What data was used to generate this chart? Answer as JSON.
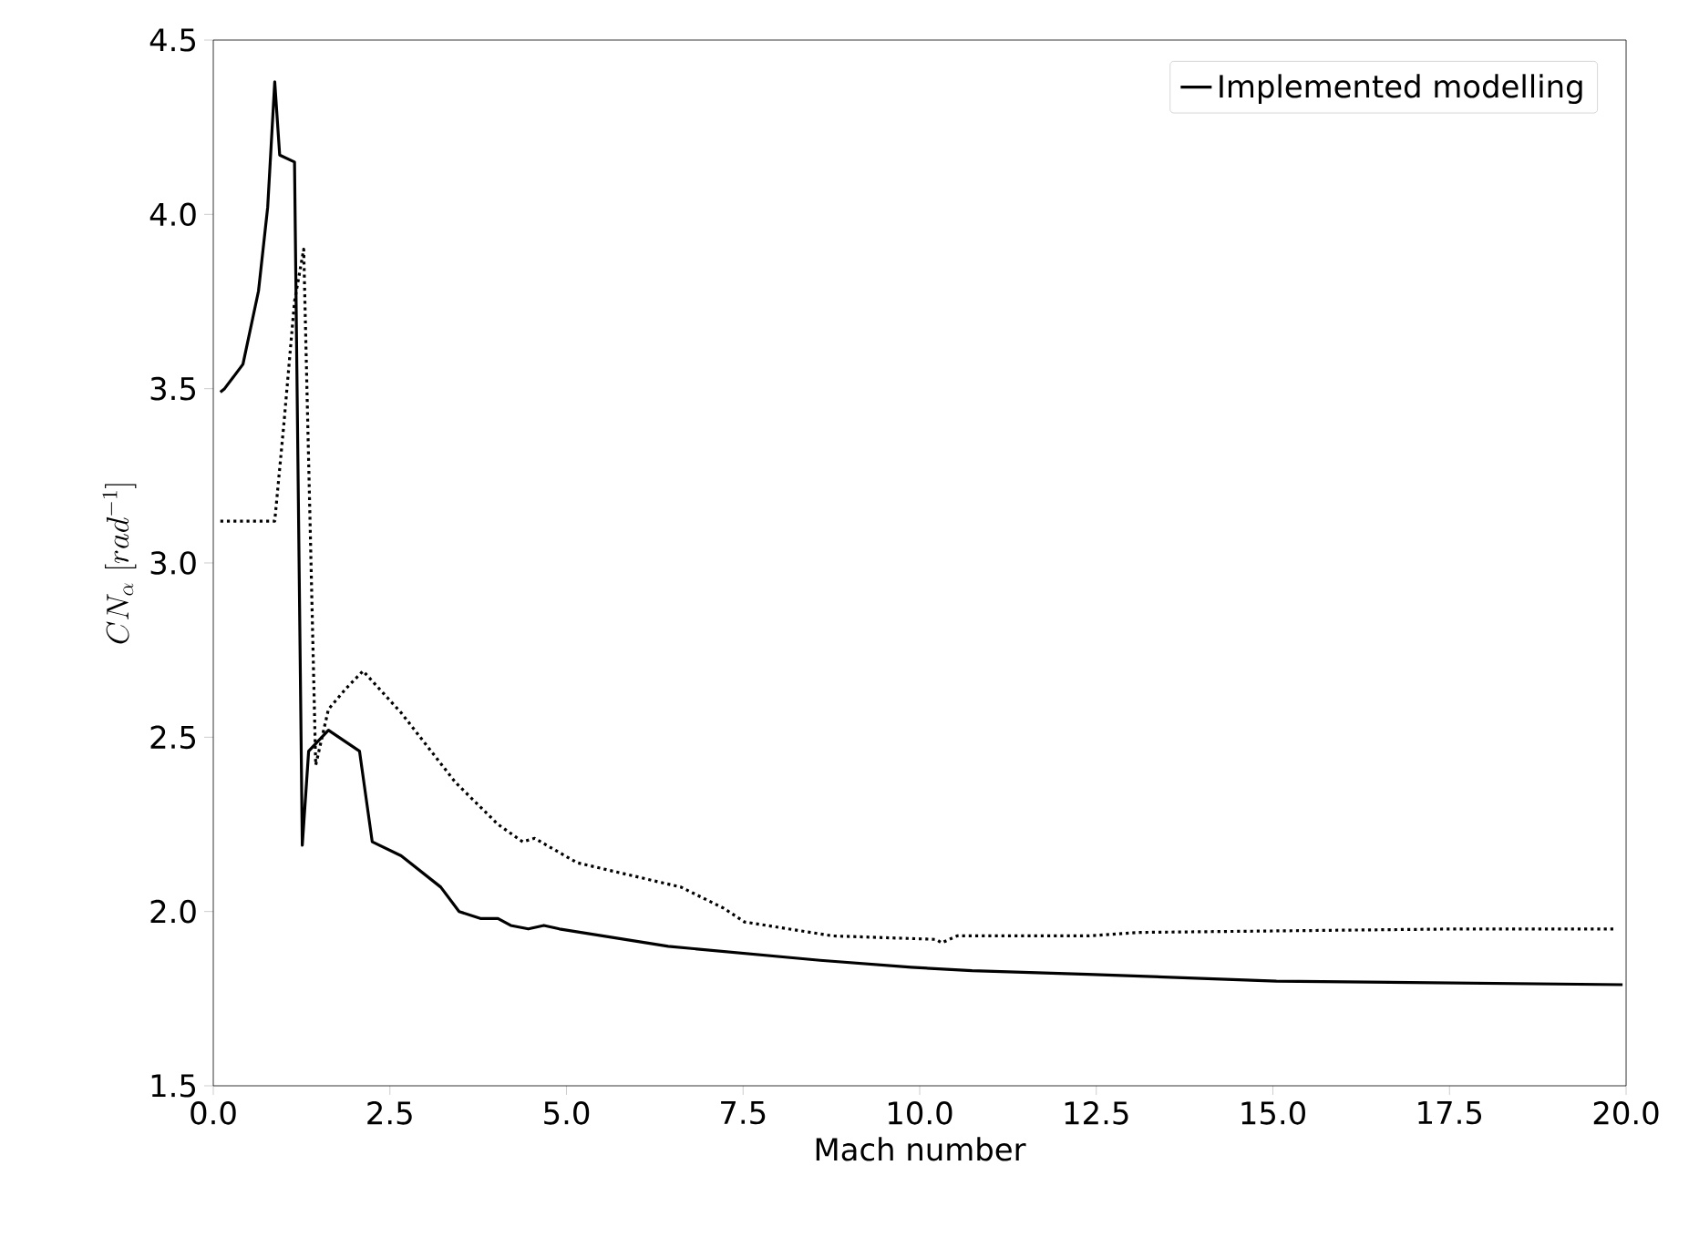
{
  "chart_data": {
    "type": "line",
    "xlabel": "Mach number",
    "ylabel": "CN_{\\alpha}\\ [rad^{-1}]",
    "xlim": [
      0,
      20
    ],
    "ylim": [
      1.5,
      4.5
    ],
    "xticks": [
      {
        "value": 0,
        "label": "0.0"
      },
      {
        "value": 2.5,
        "label": "2.5"
      },
      {
        "value": 5,
        "label": "5.0"
      },
      {
        "value": 7.5,
        "label": "7.5"
      },
      {
        "value": 10,
        "label": "10.0"
      },
      {
        "value": 12.5,
        "label": "12.5"
      },
      {
        "value": 15,
        "label": "15.0"
      },
      {
        "value": 17.5,
        "label": "17.5"
      },
      {
        "value": 20,
        "label": "20.0"
      }
    ],
    "yticks": [
      {
        "value": 1.5,
        "label": "1.5"
      },
      {
        "value": 2,
        "label": "2.0"
      },
      {
        "value": 2.5,
        "label": "2.5"
      },
      {
        "value": 3,
        "label": "3.0"
      },
      {
        "value": 3.5,
        "label": "3.5"
      },
      {
        "value": 4,
        "label": "4.0"
      },
      {
        "value": 4.5,
        "label": "4.5"
      }
    ],
    "legend": "top right",
    "grid": false,
    "series": [
      {
        "color": "#000000",
        "line_style": "dotted",
        "x": [
          0.1,
          0.87,
          1.0,
          1.15,
          1.28,
          1.45,
          1.63,
          1.88,
          2.12,
          2.66,
          3.43,
          4.03,
          4.38,
          4.55,
          5.15,
          6.62,
          7.22,
          7.52,
          8.77,
          10.23,
          10.31,
          10.53,
          12.38,
          13.1,
          17.6,
          19.86
        ],
        "values": [
          3.12,
          3.12,
          3.4,
          3.75,
          3.9,
          2.42,
          2.58,
          2.64,
          2.69,
          2.57,
          2.37,
          2.25,
          2.2,
          2.21,
          2.14,
          2.07,
          2.01,
          1.97,
          1.93,
          1.92,
          1.91,
          1.93,
          1.93,
          1.94,
          1.95,
          1.95
        ]
      },
      {
        "name": "Implemented modelling",
        "color": "#000000",
        "line_style": "solid",
        "x": [
          0.1,
          0.16,
          0.42,
          0.64,
          0.77,
          0.87,
          0.94,
          1.15,
          1.26,
          1.35,
          1.63,
          2.07,
          2.25,
          2.66,
          3.22,
          3.48,
          3.78,
          4.03,
          4.21,
          4.46,
          4.68,
          4.9,
          6.44,
          8.59,
          9.88,
          10.74,
          12.38,
          15.05,
          19.95
        ],
        "values": [
          3.49,
          3.5,
          3.57,
          3.78,
          4.02,
          4.38,
          4.17,
          4.15,
          2.19,
          2.46,
          2.52,
          2.46,
          2.2,
          2.16,
          2.07,
          2.0,
          1.98,
          1.98,
          1.96,
          1.95,
          1.96,
          1.95,
          1.9,
          1.86,
          1.84,
          1.83,
          1.82,
          1.8,
          1.79
        ]
      }
    ]
  }
}
